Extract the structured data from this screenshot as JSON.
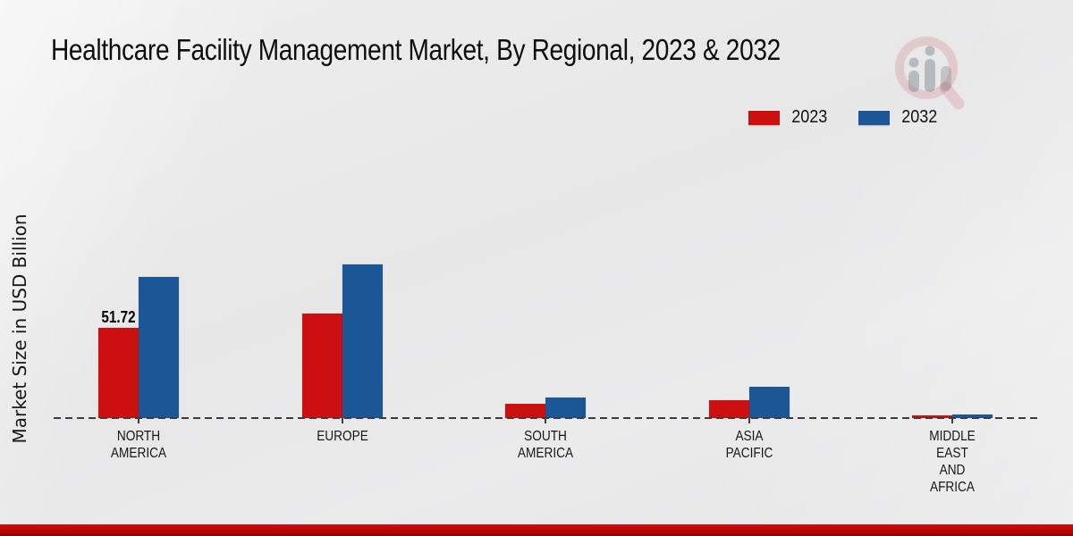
{
  "title": "Healthcare Facility Management Market, By Regional, 2023 & 2032",
  "ylabel": "Market Size in USD Billion",
  "legend": {
    "items": [
      {
        "label": "2023",
        "color": "#cc1010"
      },
      {
        "label": "2032",
        "color": "#1b5796"
      }
    ]
  },
  "watermark": {
    "icon": "magnifier-bar-chart-logo"
  },
  "colors": {
    "bar_2023": "#cc1010",
    "bar_2032": "#1b5796",
    "baseline": "#3c3c3c",
    "footer_bar_top": "#d90b0b",
    "footer_bar_bottom": "#a30303",
    "background": "#e8e8e9"
  },
  "chart_data": {
    "type": "bar",
    "title": "Healthcare Facility Management Market, By Regional, 2023 & 2032",
    "xlabel": "",
    "ylabel": "Market Size in USD Billion",
    "categories": [
      "NORTH AMERICA",
      "EUROPE",
      "SOUTH AMERICA",
      "ASIA PACIFIC",
      "MIDDLE EAST AND AFRICA"
    ],
    "category_label_lines": [
      [
        "NORTH",
        "AMERICA"
      ],
      [
        "EUROPE"
      ],
      [
        "SOUTH",
        "AMERICA"
      ],
      [
        "ASIA",
        "PACIFIC"
      ],
      [
        "MIDDLE",
        "EAST",
        "AND",
        "AFRICA"
      ]
    ],
    "series": [
      {
        "name": "2023",
        "color": "#cc1010",
        "values": [
          51.72,
          60,
          8.2,
          10.2,
          1.3
        ]
      },
      {
        "name": "2032",
        "color": "#1b5796",
        "values": [
          80.9,
          88,
          11.8,
          17.9,
          2.3
        ]
      }
    ],
    "data_labels": [
      {
        "series": "2023",
        "category": "NORTH AMERICA",
        "text": "51.72"
      }
    ],
    "ylim": [
      0,
      95
    ],
    "grid": false,
    "legend_position": "top-right",
    "baseline_style": "dashed"
  }
}
